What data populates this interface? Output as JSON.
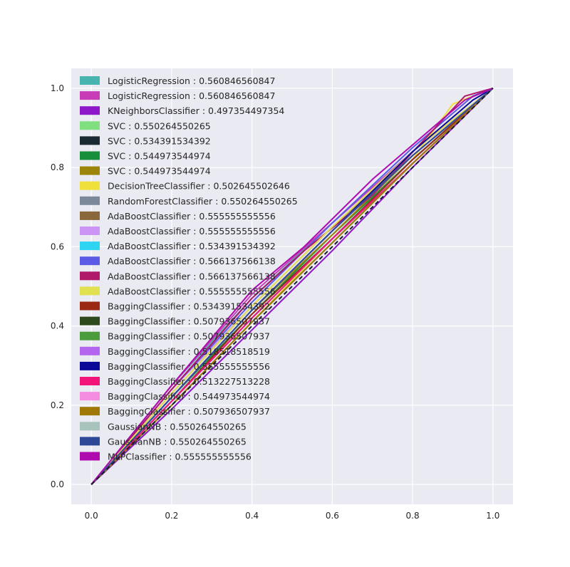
{
  "chart_data": {
    "type": "line",
    "title": "",
    "xlabel": "",
    "ylabel": "",
    "xlim": [
      -0.05,
      1.05
    ],
    "ylim": [
      -0.05,
      1.05
    ],
    "x_ticks": [
      "0.0",
      "0.2",
      "0.4",
      "0.6",
      "0.8",
      "1.0"
    ],
    "y_ticks": [
      "0.0",
      "0.2",
      "0.4",
      "0.6",
      "0.8",
      "1.0"
    ],
    "x_tick_values": [
      0.0,
      0.2,
      0.4,
      0.6,
      0.8,
      1.0
    ],
    "y_tick_values": [
      0.0,
      0.2,
      0.4,
      0.6,
      0.8,
      1.0
    ],
    "grid": true,
    "legend_position": "top-left",
    "background_color": "#eaeaf2",
    "diagonal_color": "#1a1a2e",
    "series": [
      {
        "name": "LogisticRegression : 0.560846560847",
        "color": "#48b4b0",
        "points": [
          [
            0,
            0
          ],
          [
            0.2,
            0.25
          ],
          [
            0.4,
            0.47
          ],
          [
            0.6,
            0.66
          ],
          [
            0.8,
            0.84
          ],
          [
            1,
            1
          ]
        ]
      },
      {
        "name": "LogisticRegression : 0.560846560847",
        "color": "#c83cb8",
        "points": [
          [
            0,
            0
          ],
          [
            0.2,
            0.25
          ],
          [
            0.4,
            0.48
          ],
          [
            0.6,
            0.66
          ],
          [
            0.8,
            0.84
          ],
          [
            1,
            1
          ]
        ]
      },
      {
        "name": "KNeighborsClassifier : 0.497354497354",
        "color": "#8d17c9",
        "points": [
          [
            0,
            0
          ],
          [
            0.2,
            0.19
          ],
          [
            0.4,
            0.39
          ],
          [
            0.6,
            0.59
          ],
          [
            0.8,
            0.8
          ],
          [
            1,
            1
          ]
        ]
      },
      {
        "name": "SVC : 0.550264550265",
        "color": "#80e080",
        "points": [
          [
            0,
            0
          ],
          [
            0.2,
            0.22
          ],
          [
            0.4,
            0.44
          ],
          [
            0.6,
            0.64
          ],
          [
            0.8,
            0.83
          ],
          [
            1,
            1
          ]
        ]
      },
      {
        "name": "SVC : 0.534391534392",
        "color": "#1a2a33",
        "points": [
          [
            0,
            0
          ],
          [
            0.2,
            0.21
          ],
          [
            0.4,
            0.42
          ],
          [
            0.6,
            0.62
          ],
          [
            0.8,
            0.82
          ],
          [
            1,
            1
          ]
        ]
      },
      {
        "name": "SVC : 0.544973544974",
        "color": "#168e3a",
        "points": [
          [
            0,
            0
          ],
          [
            0.2,
            0.22
          ],
          [
            0.4,
            0.43
          ],
          [
            0.6,
            0.63
          ],
          [
            0.8,
            0.82
          ],
          [
            1,
            1
          ]
        ]
      },
      {
        "name": "SVC : 0.544973544974",
        "color": "#9c8508",
        "points": [
          [
            0,
            0
          ],
          [
            0.2,
            0.22
          ],
          [
            0.4,
            0.44
          ],
          [
            0.6,
            0.63
          ],
          [
            0.8,
            0.83
          ],
          [
            1,
            1
          ]
        ]
      },
      {
        "name": "DecisionTreeClassifier : 0.502645502646",
        "color": "#f0e03a",
        "points": [
          [
            0,
            0
          ],
          [
            0.2,
            0.2
          ],
          [
            0.4,
            0.41
          ],
          [
            0.6,
            0.62
          ],
          [
            0.8,
            0.82
          ],
          [
            0.9,
            0.96
          ],
          [
            1,
            1
          ]
        ]
      },
      {
        "name": "RandomForestClassifier : 0.550264550265",
        "color": "#7a8899",
        "points": [
          [
            0,
            0
          ],
          [
            0.2,
            0.22
          ],
          [
            0.4,
            0.44
          ],
          [
            0.6,
            0.64
          ],
          [
            0.8,
            0.83
          ],
          [
            1,
            1
          ]
        ]
      },
      {
        "name": "AdaBoostClassifier : 0.555555555556",
        "color": "#8a683c",
        "points": [
          [
            0,
            0
          ],
          [
            0.2,
            0.23
          ],
          [
            0.4,
            0.45
          ],
          [
            0.6,
            0.65
          ],
          [
            0.8,
            0.83
          ],
          [
            1,
            1
          ]
        ]
      },
      {
        "name": "AdaBoostClassifier : 0.555555555556",
        "color": "#cc94f4",
        "points": [
          [
            0,
            0
          ],
          [
            0.2,
            0.24
          ],
          [
            0.4,
            0.45
          ],
          [
            0.6,
            0.65
          ],
          [
            0.8,
            0.84
          ],
          [
            1,
            1
          ]
        ]
      },
      {
        "name": "AdaBoostClassifier : 0.534391534392",
        "color": "#2ed4f2",
        "points": [
          [
            0,
            0
          ],
          [
            0.2,
            0.21
          ],
          [
            0.4,
            0.42
          ],
          [
            0.6,
            0.62
          ],
          [
            0.8,
            0.82
          ],
          [
            1,
            1
          ]
        ]
      },
      {
        "name": "AdaBoostClassifier : 0.566137566138",
        "color": "#5a5ae6",
        "points": [
          [
            0,
            0
          ],
          [
            0.2,
            0.24
          ],
          [
            0.4,
            0.46
          ],
          [
            0.6,
            0.66
          ],
          [
            0.8,
            0.85
          ],
          [
            0.95,
            0.98
          ],
          [
            1,
            1
          ]
        ]
      },
      {
        "name": "AdaBoostClassifier : 0.566137566138",
        "color": "#b0186a",
        "points": [
          [
            0,
            0
          ],
          [
            0.2,
            0.24
          ],
          [
            0.4,
            0.47
          ],
          [
            0.53,
            0.59
          ],
          [
            0.7,
            0.73
          ],
          [
            0.93,
            0.98
          ],
          [
            1,
            1
          ]
        ]
      },
      {
        "name": "AdaBoostClassifier : 0.555555555556",
        "color": "#e0e050",
        "points": [
          [
            0,
            0
          ],
          [
            0.2,
            0.23
          ],
          [
            0.4,
            0.45
          ],
          [
            0.6,
            0.65
          ],
          [
            0.8,
            0.84
          ],
          [
            1,
            1
          ]
        ]
      },
      {
        "name": "BaggingClassifier : 0.534391534392",
        "color": "#9a2812",
        "points": [
          [
            0,
            0
          ],
          [
            0.2,
            0.21
          ],
          [
            0.4,
            0.43
          ],
          [
            0.6,
            0.62
          ],
          [
            0.8,
            0.82
          ],
          [
            1,
            1
          ]
        ]
      },
      {
        "name": "BaggingClassifier : 0.507936507937",
        "color": "#2e4a1c",
        "points": [
          [
            0,
            0
          ],
          [
            0.2,
            0.2
          ],
          [
            0.4,
            0.41
          ],
          [
            0.6,
            0.61
          ],
          [
            0.8,
            0.81
          ],
          [
            1,
            1
          ]
        ]
      },
      {
        "name": "BaggingClassifier : 0.507936507937",
        "color": "#4c9c3e",
        "points": [
          [
            0,
            0
          ],
          [
            0.2,
            0.2
          ],
          [
            0.4,
            0.41
          ],
          [
            0.6,
            0.61
          ],
          [
            0.8,
            0.81
          ],
          [
            1,
            1
          ]
        ]
      },
      {
        "name": "BaggingClassifier : 0.518518518519",
        "color": "#b466ee",
        "points": [
          [
            0,
            0
          ],
          [
            0.2,
            0.21
          ],
          [
            0.4,
            0.42
          ],
          [
            0.6,
            0.62
          ],
          [
            0.8,
            0.81
          ],
          [
            1,
            1
          ]
        ]
      },
      {
        "name": "BaggingClassifier : 0.555555555556",
        "color": "#0a0a98",
        "points": [
          [
            0,
            0
          ],
          [
            0.2,
            0.22
          ],
          [
            0.4,
            0.44
          ],
          [
            0.6,
            0.64
          ],
          [
            0.8,
            0.84
          ],
          [
            0.95,
            0.97
          ],
          [
            1,
            1
          ]
        ]
      },
      {
        "name": "BaggingClassifier : 0.513227513228",
        "color": "#f21478",
        "points": [
          [
            0,
            0
          ],
          [
            0.2,
            0.21
          ],
          [
            0.4,
            0.42
          ],
          [
            0.6,
            0.62
          ],
          [
            0.8,
            0.81
          ],
          [
            1,
            1
          ]
        ]
      },
      {
        "name": "BaggingClassifier : 0.544973544974",
        "color": "#f48ce0",
        "points": [
          [
            0,
            0
          ],
          [
            0.2,
            0.22
          ],
          [
            0.4,
            0.44
          ],
          [
            0.6,
            0.64
          ],
          [
            0.8,
            0.83
          ],
          [
            1,
            1
          ]
        ]
      },
      {
        "name": "BaggingClassifier : 0.507936507937",
        "color": "#a07808",
        "points": [
          [
            0,
            0
          ],
          [
            0.2,
            0.2
          ],
          [
            0.4,
            0.41
          ],
          [
            0.6,
            0.61
          ],
          [
            0.8,
            0.81
          ],
          [
            1,
            1
          ]
        ]
      },
      {
        "name": "GaussianNB : 0.550264550265",
        "color": "#a8c2bc",
        "points": [
          [
            0,
            0
          ],
          [
            0.2,
            0.22
          ],
          [
            0.4,
            0.44
          ],
          [
            0.6,
            0.64
          ],
          [
            0.8,
            0.83
          ],
          [
            1,
            1
          ]
        ]
      },
      {
        "name": "GaussianNB : 0.550264550265",
        "color": "#2e4898",
        "points": [
          [
            0,
            0
          ],
          [
            0.2,
            0.22
          ],
          [
            0.4,
            0.44
          ],
          [
            0.6,
            0.64
          ],
          [
            0.8,
            0.83
          ],
          [
            1,
            1
          ]
        ]
      },
      {
        "name": "MLPClassifier : 0.555555555556",
        "color": "#ae0cae",
        "points": [
          [
            0,
            0
          ],
          [
            0.2,
            0.25
          ],
          [
            0.4,
            0.49
          ],
          [
            0.53,
            0.6
          ],
          [
            0.7,
            0.77
          ],
          [
            0.93,
            0.97
          ],
          [
            1,
            1
          ]
        ]
      }
    ]
  }
}
